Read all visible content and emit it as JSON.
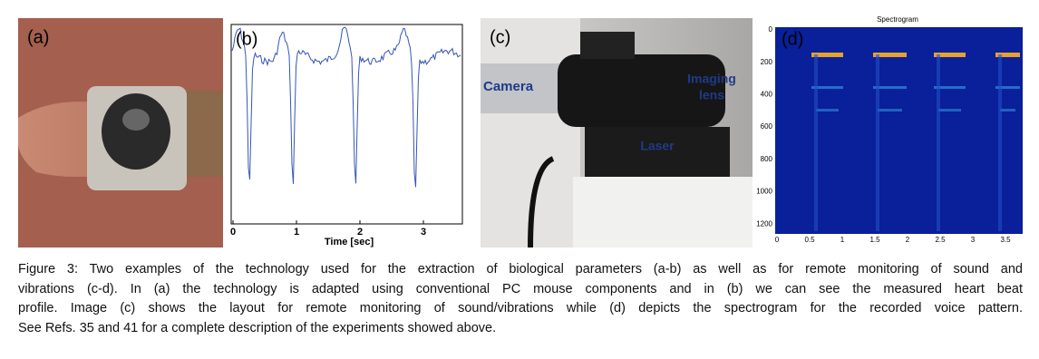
{
  "panels": [
    {
      "label": "(a)"
    },
    {
      "label": "(b)",
      "x_axis_label": "Time [sec]",
      "x_ticks": [
        "0",
        "1",
        "2",
        "3"
      ]
    },
    {
      "label": "(c)",
      "annotations": [
        "Camera",
        "Imaging",
        "lens",
        "Laser"
      ]
    },
    {
      "label": "(d)",
      "title": "Spectrogram",
      "y_ticks": [
        "0",
        "200",
        "400",
        "600",
        "800",
        "1000",
        "1200"
      ],
      "x_ticks": [
        "0",
        "0.5",
        "1",
        "1.5",
        "2",
        "2.5",
        "3",
        "3.5"
      ]
    }
  ],
  "caption": {
    "lines": [
      "Figure 3: Two examples of the technology used for the extraction of biological parameters (a-b) as well as for remote monitoring of sound and",
      "vibrations (c-d). In (a) the technology is adapted using conventional PC mouse components and in (b) we can see the measured heart beat",
      "profile. Image (c) shows the layout for remote monitoring of sound/vibrations while (d) depicts the spectrogram for the recorded voice pattern.",
      "See Refs. 35 and 41 for a complete description of the experiments showed above."
    ]
  }
}
